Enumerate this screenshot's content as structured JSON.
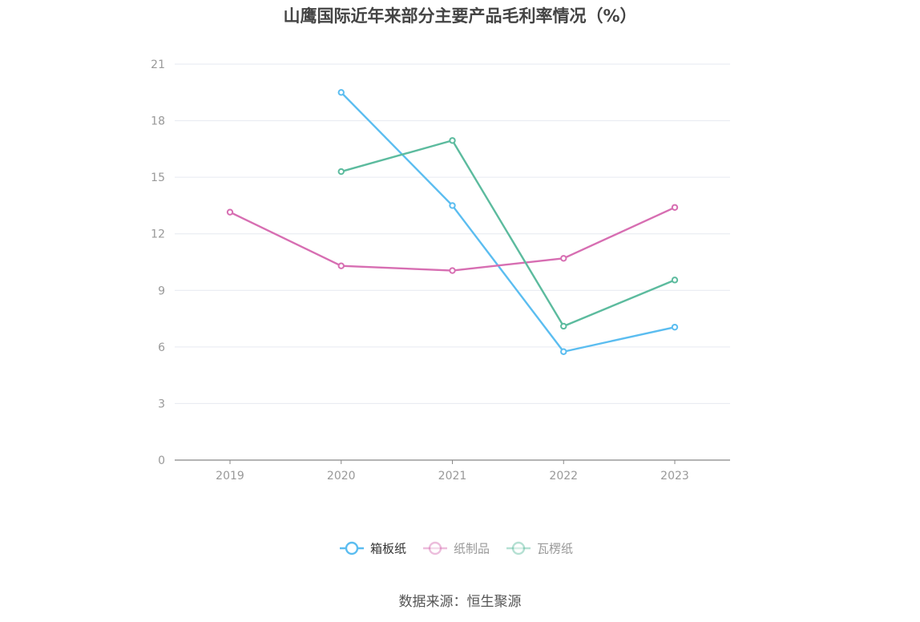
{
  "chart_data": {
    "type": "line",
    "title": "山鹰国际近年来部分主要产品毛利率情况（%）",
    "categories": [
      "2019",
      "2020",
      "2021",
      "2022",
      "2023"
    ],
    "y_ticks": [
      "0",
      "3",
      "6",
      "9",
      "12",
      "15",
      "18",
      "21"
    ],
    "ylim": [
      0,
      21
    ],
    "grid": true,
    "legend_position": "bottom-center",
    "series": [
      {
        "name": "箱板纸",
        "color": "#5bbdf0",
        "legend_faded": false,
        "values": [
          null,
          19.5,
          13.5,
          5.75,
          7.05
        ]
      },
      {
        "name": "纸制品",
        "color": "#d76eb2",
        "legend_faded": true,
        "values": [
          13.15,
          10.3,
          10.05,
          10.7,
          13.4
        ]
      },
      {
        "name": "瓦楞纸",
        "color": "#5cbb9e",
        "legend_faded": true,
        "values": [
          null,
          15.3,
          16.95,
          7.1,
          9.55
        ]
      }
    ]
  },
  "source": "数据来源：恒生聚源"
}
